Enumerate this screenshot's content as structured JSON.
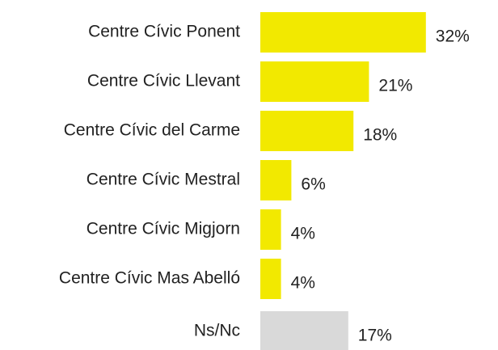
{
  "chart_data": {
    "type": "barh",
    "categories": [
      "Centre Cívic Ponent",
      "Centre Cívic Llevant",
      "Centre Cívic del Carme",
      "Centre Cívic Mestral",
      "Centre Cívic Migjorn",
      "Centre Cívic Mas Abelló",
      "Ns/Nc"
    ],
    "values": [
      32,
      21,
      18,
      6,
      4,
      4,
      17
    ],
    "value_labels": [
      "32%",
      "21%",
      "18%",
      "6%",
      "4%",
      "4%",
      "17%"
    ],
    "colors": [
      "#f2e900",
      "#f2e900",
      "#f2e900",
      "#f2e900",
      "#f2e900",
      "#f2e900",
      "#d9d9d9"
    ]
  }
}
